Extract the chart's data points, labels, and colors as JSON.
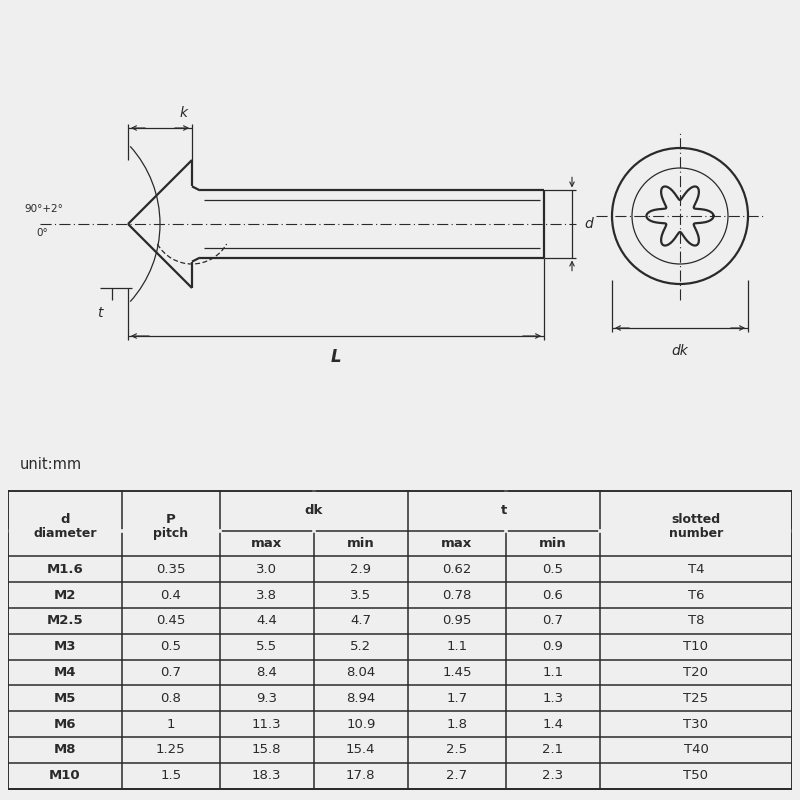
{
  "unit_label": "unit:mm",
  "rows": [
    [
      "M1.6",
      "0.35",
      "3.0",
      "2.9",
      "0.62",
      "0.5",
      "T4"
    ],
    [
      "M2",
      "0.4",
      "3.8",
      "3.5",
      "0.78",
      "0.6",
      "T6"
    ],
    [
      "M2.5",
      "0.45",
      "4.4",
      "4.7",
      "0.95",
      "0.7",
      "T8"
    ],
    [
      "M3",
      "0.5",
      "5.5",
      "5.2",
      "1.1",
      "0.9",
      "T10"
    ],
    [
      "M4",
      "0.7",
      "8.4",
      "8.04",
      "1.45",
      "1.1",
      "T20"
    ],
    [
      "M5",
      "0.8",
      "9.3",
      "8.94",
      "1.7",
      "1.3",
      "T25"
    ],
    [
      "M6",
      "1",
      "11.3",
      "10.9",
      "1.8",
      "1.4",
      "T30"
    ],
    [
      "M8",
      "1.25",
      "15.8",
      "15.4",
      "2.5",
      "2.1",
      "T40"
    ],
    [
      "M10",
      "1.5",
      "18.3",
      "17.8",
      "2.7",
      "2.3",
      "T50"
    ]
  ],
  "bg_color": "#efefef",
  "line_color": "#2a2a2a",
  "table_line_color": "#2a2a2a"
}
